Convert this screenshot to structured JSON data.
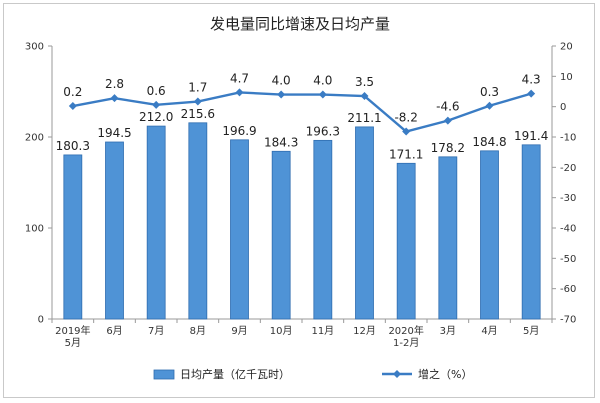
{
  "chart_data": {
    "type": "bar",
    "title": "发电量同比增速及日均产量",
    "categories": [
      [
        "2019年",
        "5月"
      ],
      [
        "6月"
      ],
      [
        "7月"
      ],
      [
        "8月"
      ],
      [
        "9月"
      ],
      [
        "10月"
      ],
      [
        "11月"
      ],
      [
        "12月"
      ],
      [
        "2020年",
        "1-2月"
      ],
      [
        "3月"
      ],
      [
        "4月"
      ],
      [
        "5月"
      ]
    ],
    "series": [
      {
        "name": "日均产量（亿千瓦时）",
        "kind": "bar",
        "axis": "left",
        "color": "#4f93d6",
        "values": [
          180.3,
          194.5,
          212.0,
          215.6,
          196.9,
          184.3,
          196.3,
          211.1,
          171.1,
          178.2,
          184.8,
          191.4
        ],
        "labels": [
          "180.3",
          "194.5",
          "212.0",
          "215.6",
          "196.9",
          "184.3",
          "196.3",
          "211.1",
          "171.1",
          "178.2",
          "184.8",
          "191.4"
        ]
      },
      {
        "name": "增速（%）",
        "legend_label": "增之（%）",
        "kind": "line",
        "axis": "right",
        "color": "#3a7cc4",
        "values": [
          0.2,
          2.8,
          0.6,
          1.7,
          4.7,
          4.0,
          4.0,
          3.5,
          -8.2,
          -4.6,
          0.3,
          4.3
        ],
        "labels": [
          "0.2",
          "2.8",
          "0.6",
          "1.7",
          "4.7",
          "4.0",
          "4.0",
          "3.5",
          "-8.2",
          "-4.6",
          "0.3",
          "4.3"
        ]
      }
    ],
    "ylim_left": [
      0,
      300
    ],
    "yticks_left": [
      0,
      100,
      200,
      300
    ],
    "ylim_right": [
      -70,
      20
    ],
    "yticks_right": [
      20,
      10,
      0,
      -10,
      -20,
      -30,
      -40,
      -50,
      -60,
      -70
    ],
    "grid": false,
    "legend": "bottom"
  }
}
